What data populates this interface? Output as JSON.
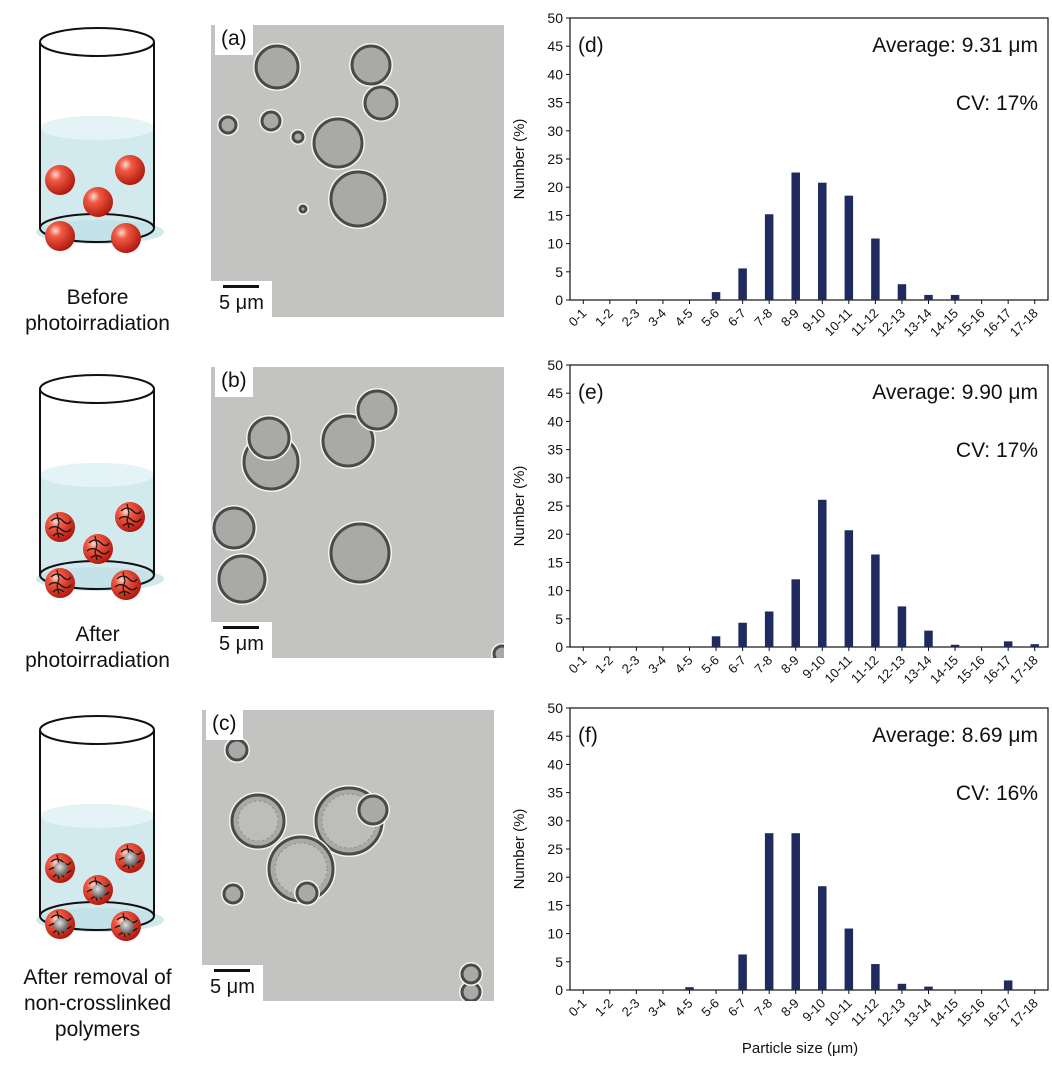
{
  "colors": {
    "bar": "#1f2a5e",
    "sphere": "#e8372a",
    "liquid": "#cde8ec",
    "micro_bg": "#c3c3c1"
  },
  "rows": [
    {
      "caption_lines": [
        "Before",
        "photoirradiation"
      ],
      "panel_label": "(a)",
      "scale_label": "5 μm",
      "sphere_style": "plain"
    },
    {
      "caption_lines": [
        "After",
        "photoirradiation"
      ],
      "panel_label": "(b)",
      "scale_label": "5 μm",
      "sphere_style": "crosslinked"
    },
    {
      "caption_lines": [
        "After removal of",
        "non-crosslinked",
        "polymers"
      ],
      "panel_label": "(c)",
      "scale_label": "5 μm",
      "sphere_style": "core"
    }
  ],
  "x_axis_label": "Particle size (μm)",
  "chart_data": [
    {
      "type": "bar",
      "panel_label": "(d)",
      "annotations": [
        "Average: 9.31 μm",
        "CV: 17%"
      ],
      "ylabel": "Number (%)",
      "ylim": [
        0,
        50
      ],
      "yticks": [
        0,
        5,
        10,
        15,
        20,
        25,
        30,
        35,
        40,
        45,
        50
      ],
      "categories": [
        "0-1",
        "1-2",
        "2-3",
        "3-4",
        "4-5",
        "5-6",
        "6-7",
        "7-8",
        "8-9",
        "9-10",
        "10-11",
        "11-12",
        "12-13",
        "13-14",
        "14-15",
        "15-16",
        "16-17",
        "17-18"
      ],
      "values": [
        0,
        0,
        0,
        0,
        0,
        1.4,
        5.6,
        15.2,
        22.6,
        20.8,
        18.5,
        10.9,
        2.8,
        0.9,
        0.9,
        0,
        0,
        0
      ]
    },
    {
      "type": "bar",
      "panel_label": "(e)",
      "annotations": [
        "Average: 9.90 μm",
        "CV: 17%"
      ],
      "ylabel": "Number (%)",
      "ylim": [
        0,
        50
      ],
      "yticks": [
        0,
        5,
        10,
        15,
        20,
        25,
        30,
        35,
        40,
        45,
        50
      ],
      "categories": [
        "0-1",
        "1-2",
        "2-3",
        "3-4",
        "4-5",
        "5-6",
        "6-7",
        "7-8",
        "8-9",
        "9-10",
        "10-11",
        "11-12",
        "12-13",
        "13-14",
        "14-15",
        "15-16",
        "16-17",
        "17-18"
      ],
      "values": [
        0,
        0,
        0,
        0,
        0,
        1.9,
        4.3,
        6.3,
        12.0,
        26.1,
        20.7,
        16.4,
        7.2,
        2.9,
        0.4,
        0,
        1.0,
        0.5
      ]
    },
    {
      "type": "bar",
      "panel_label": "(f)",
      "annotations": [
        "Average: 8.69 μm",
        "CV: 16%"
      ],
      "ylabel": "Number (%)",
      "ylim": [
        0,
        50
      ],
      "yticks": [
        0,
        5,
        10,
        15,
        20,
        25,
        30,
        35,
        40,
        45,
        50
      ],
      "categories": [
        "0-1",
        "1-2",
        "2-3",
        "3-4",
        "4-5",
        "5-6",
        "6-7",
        "7-8",
        "8-9",
        "9-10",
        "10-11",
        "11-12",
        "12-13",
        "13-14",
        "14-15",
        "15-16",
        "16-17",
        "17-18"
      ],
      "values": [
        0,
        0,
        0,
        0,
        0.5,
        0,
        6.3,
        27.8,
        27.8,
        18.4,
        10.9,
        4.6,
        1.1,
        0.6,
        0,
        0,
        1.7,
        0
      ]
    }
  ]
}
